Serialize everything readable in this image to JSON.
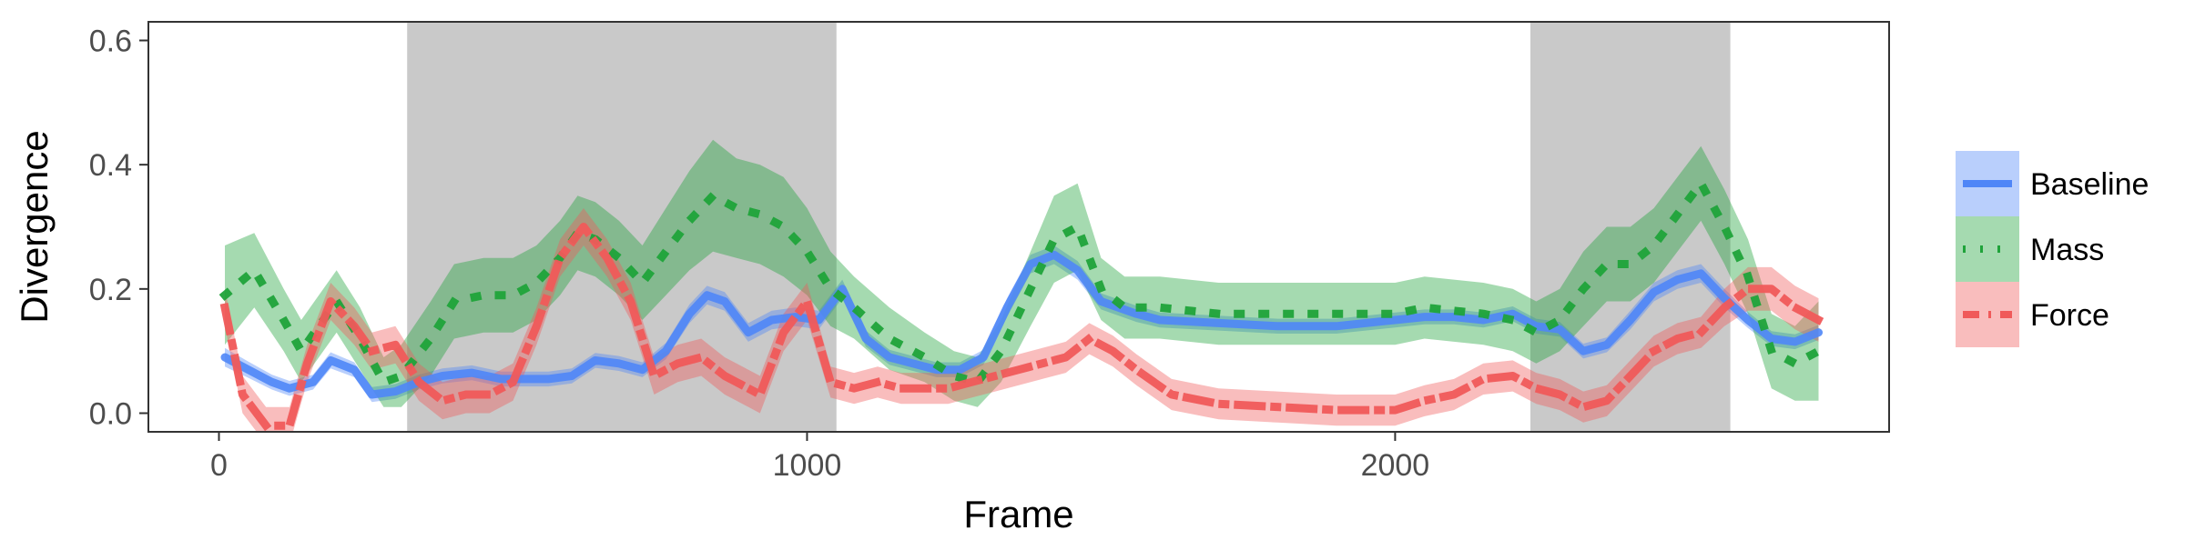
{
  "chart_data": {
    "type": "line",
    "title": "",
    "xlabel": "Frame",
    "ylabel": "Divergence",
    "xlim": [
      -120,
      2840
    ],
    "ylim": [
      -0.03,
      0.63
    ],
    "xticks": [
      0,
      1000,
      2000
    ],
    "xtick_labels": [
      "0",
      "1000",
      "2000"
    ],
    "yticks": [
      0.0,
      0.2,
      0.4,
      0.6
    ],
    "ytick_labels": [
      "0.0",
      "0.2",
      "0.4",
      "0.6"
    ],
    "grid": false,
    "legend_position": "right",
    "shaded_regions": [
      {
        "x0": 320,
        "x1": 1050
      },
      {
        "x0": 2230,
        "x1": 2570
      }
    ],
    "series": [
      {
        "name": "Baseline",
        "color": "#4f86f7",
        "dash": "solid",
        "x": [
          10,
          50,
          90,
          120,
          160,
          190,
          230,
          260,
          300,
          340,
          380,
          430,
          480,
          520,
          560,
          600,
          640,
          680,
          720,
          760,
          800,
          830,
          860,
          900,
          940,
          980,
          1020,
          1060,
          1100,
          1140,
          1180,
          1220,
          1260,
          1300,
          1340,
          1380,
          1420,
          1460,
          1500,
          1560,
          1600,
          1700,
          1800,
          1900,
          2000,
          2050,
          2100,
          2150,
          2200,
          2240,
          2280,
          2320,
          2360,
          2400,
          2440,
          2480,
          2520,
          2560,
          2600,
          2640,
          2680,
          2720
        ],
        "y": [
          0.09,
          0.07,
          0.05,
          0.04,
          0.05,
          0.085,
          0.07,
          0.03,
          0.035,
          0.05,
          0.06,
          0.065,
          0.055,
          0.055,
          0.055,
          0.06,
          0.085,
          0.08,
          0.07,
          0.1,
          0.16,
          0.19,
          0.18,
          0.13,
          0.15,
          0.155,
          0.15,
          0.2,
          0.12,
          0.09,
          0.08,
          0.07,
          0.07,
          0.09,
          0.17,
          0.24,
          0.255,
          0.23,
          0.18,
          0.16,
          0.15,
          0.145,
          0.14,
          0.14,
          0.15,
          0.155,
          0.155,
          0.15,
          0.16,
          0.14,
          0.135,
          0.1,
          0.11,
          0.15,
          0.195,
          0.215,
          0.225,
          0.185,
          0.15,
          0.12,
          0.115,
          0.13
        ],
        "band": [
          0.015,
          0.013,
          0.012,
          0.012,
          0.012,
          0.013,
          0.012,
          0.012,
          0.012,
          0.012,
          0.012,
          0.012,
          0.012,
          0.012,
          0.012,
          0.012,
          0.012,
          0.012,
          0.012,
          0.013,
          0.015,
          0.015,
          0.015,
          0.015,
          0.015,
          0.015,
          0.015,
          0.015,
          0.013,
          0.012,
          0.012,
          0.012,
          0.012,
          0.012,
          0.015,
          0.015,
          0.015,
          0.015,
          0.013,
          0.013,
          0.012,
          0.012,
          0.012,
          0.012,
          0.012,
          0.012,
          0.012,
          0.012,
          0.012,
          0.012,
          0.012,
          0.012,
          0.012,
          0.015,
          0.015,
          0.015,
          0.015,
          0.015,
          0.013,
          0.012,
          0.012,
          0.012
        ]
      },
      {
        "name": "Mass",
        "color": "#1fa33a",
        "dash": "dotted",
        "x": [
          10,
          60,
          110,
          140,
          200,
          240,
          280,
          310,
          360,
          400,
          450,
          500,
          540,
          580,
          610,
          640,
          680,
          720,
          760,
          800,
          840,
          880,
          920,
          960,
          1000,
          1040,
          1080,
          1140,
          1200,
          1250,
          1290,
          1330,
          1380,
          1420,
          1460,
          1500,
          1540,
          1600,
          1700,
          1800,
          1900,
          2000,
          2050,
          2100,
          2150,
          2200,
          2240,
          2280,
          2320,
          2360,
          2400,
          2440,
          2480,
          2520,
          2560,
          2600,
          2640,
          2680,
          2720
        ],
        "y": [
          0.19,
          0.23,
          0.15,
          0.1,
          0.18,
          0.12,
          0.05,
          0.06,
          0.12,
          0.18,
          0.19,
          0.19,
          0.21,
          0.25,
          0.29,
          0.28,
          0.25,
          0.21,
          0.26,
          0.31,
          0.35,
          0.33,
          0.32,
          0.3,
          0.26,
          0.2,
          0.17,
          0.12,
          0.09,
          0.06,
          0.05,
          0.1,
          0.2,
          0.28,
          0.3,
          0.2,
          0.17,
          0.17,
          0.16,
          0.16,
          0.16,
          0.16,
          0.17,
          0.165,
          0.16,
          0.15,
          0.13,
          0.15,
          0.2,
          0.24,
          0.24,
          0.27,
          0.32,
          0.37,
          0.3,
          0.22,
          0.1,
          0.08,
          0.1
        ],
        "band": [
          0.08,
          0.06,
          0.05,
          0.05,
          0.05,
          0.05,
          0.04,
          0.05,
          0.06,
          0.06,
          0.06,
          0.06,
          0.06,
          0.06,
          0.06,
          0.06,
          0.06,
          0.06,
          0.07,
          0.08,
          0.09,
          0.08,
          0.08,
          0.08,
          0.07,
          0.06,
          0.05,
          0.05,
          0.04,
          0.04,
          0.04,
          0.05,
          0.06,
          0.07,
          0.07,
          0.05,
          0.05,
          0.05,
          0.05,
          0.05,
          0.05,
          0.05,
          0.05,
          0.05,
          0.05,
          0.05,
          0.05,
          0.05,
          0.06,
          0.06,
          0.06,
          0.06,
          0.06,
          0.06,
          0.06,
          0.06,
          0.06,
          0.06,
          0.08
        ]
      },
      {
        "name": "Force",
        "color": "#f05a5a",
        "dash": "dashdot",
        "x": [
          10,
          40,
          80,
          120,
          150,
          190,
          230,
          260,
          300,
          340,
          380,
          420,
          460,
          500,
          540,
          580,
          620,
          660,
          700,
          740,
          780,
          820,
          860,
          880,
          920,
          960,
          1000,
          1040,
          1080,
          1120,
          1160,
          1200,
          1240,
          1280,
          1320,
          1360,
          1400,
          1440,
          1480,
          1520,
          1560,
          1620,
          1700,
          1800,
          1900,
          2000,
          2050,
          2100,
          2150,
          2200,
          2240,
          2280,
          2320,
          2360,
          2400,
          2440,
          2480,
          2520,
          2560,
          2600,
          2640,
          2680,
          2720
        ],
        "y": [
          0.17,
          0.03,
          -0.02,
          -0.02,
          0.08,
          0.18,
          0.14,
          0.1,
          0.11,
          0.05,
          0.02,
          0.03,
          0.03,
          0.05,
          0.14,
          0.25,
          0.3,
          0.25,
          0.18,
          0.06,
          0.08,
          0.09,
          0.06,
          0.05,
          0.03,
          0.13,
          0.18,
          0.05,
          0.04,
          0.05,
          0.04,
          0.04,
          0.04,
          0.05,
          0.06,
          0.07,
          0.08,
          0.09,
          0.12,
          0.1,
          0.07,
          0.03,
          0.015,
          0.01,
          0.005,
          0.005,
          0.02,
          0.03,
          0.055,
          0.06,
          0.04,
          0.03,
          0.01,
          0.02,
          0.06,
          0.1,
          0.12,
          0.13,
          0.17,
          0.2,
          0.2,
          0.17,
          0.15
        ],
        "band": [
          0.03,
          0.03,
          0.03,
          0.03,
          0.03,
          0.03,
          0.03,
          0.03,
          0.03,
          0.03,
          0.03,
          0.03,
          0.03,
          0.03,
          0.03,
          0.03,
          0.03,
          0.03,
          0.03,
          0.03,
          0.03,
          0.03,
          0.03,
          0.03,
          0.03,
          0.03,
          0.03,
          0.025,
          0.025,
          0.025,
          0.025,
          0.025,
          0.025,
          0.025,
          0.025,
          0.025,
          0.025,
          0.025,
          0.025,
          0.025,
          0.025,
          0.025,
          0.025,
          0.025,
          0.025,
          0.025,
          0.025,
          0.025,
          0.025,
          0.025,
          0.025,
          0.025,
          0.025,
          0.025,
          0.025,
          0.025,
          0.025,
          0.025,
          0.03,
          0.035,
          0.035,
          0.035,
          0.035
        ]
      }
    ]
  }
}
